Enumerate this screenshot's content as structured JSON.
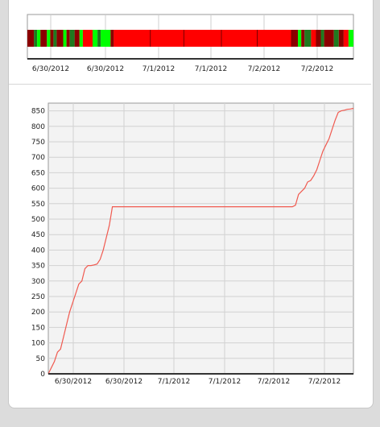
{
  "timeline": {
    "ticks": [
      "6/30/2012",
      "6/30/2012",
      "7/1/2012",
      "7/1/2012",
      "7/2/2012",
      "7/2/2012"
    ],
    "colors": {
      "bad": "#ff0000",
      "good": "#00ff00",
      "dark": "#8b0000",
      "mid": "#1f7a1f"
    },
    "segments": [
      {
        "s": 0.0,
        "e": 0.02,
        "c": "dark"
      },
      {
        "s": 0.02,
        "e": 0.03,
        "c": "mid"
      },
      {
        "s": 0.03,
        "e": 0.04,
        "c": "good"
      },
      {
        "s": 0.04,
        "e": 0.06,
        "c": "dark"
      },
      {
        "s": 0.06,
        "e": 0.07,
        "c": "good"
      },
      {
        "s": 0.07,
        "e": 0.08,
        "c": "dark"
      },
      {
        "s": 0.08,
        "e": 0.09,
        "c": "mid"
      },
      {
        "s": 0.09,
        "e": 0.11,
        "c": "dark"
      },
      {
        "s": 0.11,
        "e": 0.12,
        "c": "good"
      },
      {
        "s": 0.12,
        "e": 0.13,
        "c": "dark"
      },
      {
        "s": 0.13,
        "e": 0.145,
        "c": "mid"
      },
      {
        "s": 0.145,
        "e": 0.16,
        "c": "dark"
      },
      {
        "s": 0.16,
        "e": 0.17,
        "c": "good"
      },
      {
        "s": 0.17,
        "e": 0.2,
        "c": "bad"
      },
      {
        "s": 0.2,
        "e": 0.215,
        "c": "good"
      },
      {
        "s": 0.215,
        "e": 0.225,
        "c": "mid"
      },
      {
        "s": 0.225,
        "e": 0.255,
        "c": "good"
      },
      {
        "s": 0.255,
        "e": 0.265,
        "c": "dark"
      },
      {
        "s": 0.265,
        "e": 0.81,
        "c": "bad"
      },
      {
        "s": 0.81,
        "e": 0.83,
        "c": "dark"
      },
      {
        "s": 0.83,
        "e": 0.84,
        "c": "good"
      },
      {
        "s": 0.84,
        "e": 0.85,
        "c": "dark"
      },
      {
        "s": 0.85,
        "e": 0.87,
        "c": "mid"
      },
      {
        "s": 0.87,
        "e": 0.885,
        "c": "bad"
      },
      {
        "s": 0.885,
        "e": 0.9,
        "c": "dark"
      },
      {
        "s": 0.9,
        "e": 0.91,
        "c": "mid"
      },
      {
        "s": 0.91,
        "e": 0.94,
        "c": "dark"
      },
      {
        "s": 0.94,
        "e": 0.955,
        "c": "mid"
      },
      {
        "s": 0.955,
        "e": 0.97,
        "c": "dark"
      },
      {
        "s": 0.97,
        "e": 0.985,
        "c": "bad"
      },
      {
        "s": 0.985,
        "e": 1.0,
        "c": "good"
      }
    ],
    "dividers": [
      0.377,
      0.48,
      0.595,
      0.705,
      0.81
    ]
  },
  "chart_data": {
    "type": "line",
    "title": "",
    "xlabel": "",
    "ylabel": "",
    "ylim": [
      0,
      875
    ],
    "xlim": [
      0,
      1
    ],
    "yticks": [
      0,
      50,
      100,
      150,
      200,
      250,
      300,
      350,
      400,
      450,
      500,
      550,
      600,
      650,
      700,
      750,
      800,
      850
    ],
    "ytick_labels": [
      "0",
      "50",
      "100",
      "150",
      "200",
      "250",
      "300",
      "350",
      "400",
      "450",
      "500",
      "550",
      "600",
      "650",
      "700",
      "750",
      "800",
      "850"
    ],
    "xtick_labels": [
      "6/30/2012",
      "6/30/2012",
      "7/1/2012",
      "7/1/2012",
      "7/2/2012",
      "7/2/2012"
    ],
    "line_color": "#f05a50",
    "grid": true,
    "series": [
      {
        "x": [
          0,
          0.01,
          0.02,
          0.03,
          0.04,
          0.05,
          0.06,
          0.07,
          0.08,
          0.09,
          0.1,
          0.11,
          0.12,
          0.13,
          0.14,
          0.15,
          0.16,
          0.17,
          0.18,
          0.19,
          0.2,
          0.21,
          0.22,
          0.23,
          0.24,
          0.25,
          0.26,
          0.27,
          0.28,
          0.29,
          0.3,
          0.32,
          0.4,
          0.5,
          0.6,
          0.7,
          0.78,
          0.8,
          0.81,
          0.82,
          0.83,
          0.84,
          0.85,
          0.86,
          0.87,
          0.88,
          0.89,
          0.9,
          0.91,
          0.92,
          0.93,
          0.94,
          0.95,
          0.96,
          0.97,
          0.98,
          0.99,
          1.0
        ],
        "y": [
          0,
          20,
          40,
          70,
          80,
          120,
          160,
          200,
          230,
          260,
          290,
          300,
          340,
          350,
          350,
          352,
          355,
          370,
          400,
          440,
          480,
          540,
          540,
          540,
          540,
          540,
          540,
          540,
          540,
          540,
          540,
          540,
          540,
          540,
          540,
          540,
          540,
          540,
          545,
          580,
          590,
          600,
          620,
          625,
          640,
          660,
          690,
          720,
          740,
          760,
          790,
          820,
          845,
          850,
          852,
          855,
          856,
          858
        ]
      }
    ]
  }
}
